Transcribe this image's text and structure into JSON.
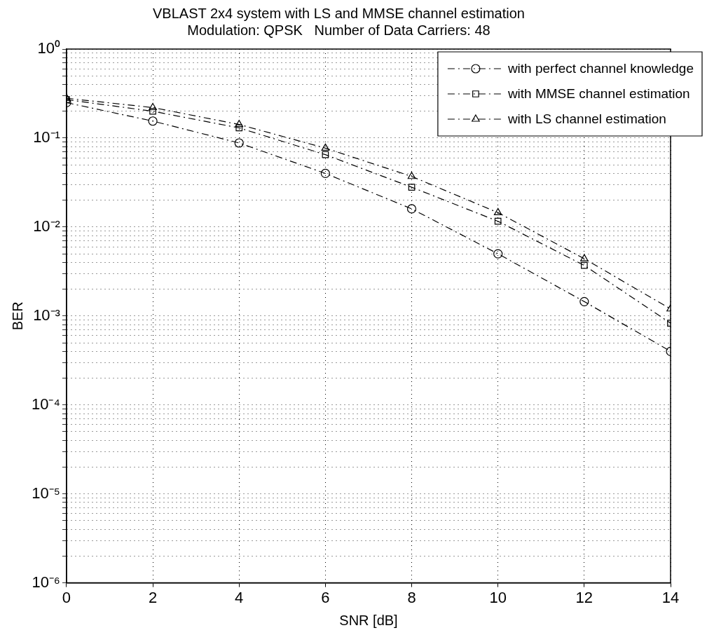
{
  "chart_data": {
    "type": "line",
    "title": "VBLAST 2x4 system with LS and MMSE channel estimation",
    "subtitle": "Modulation: QPSK   Number of Data Carriers: 48",
    "xlabel": "SNR [dB]",
    "ylabel": "BER",
    "x": [
      0,
      2,
      4,
      6,
      8,
      10,
      12,
      14
    ],
    "series": [
      {
        "name": "with perfect channel knowledge",
        "color": "#000000",
        "marker": "circle",
        "values": [
          0.25,
          0.155,
          0.088,
          0.04,
          0.016,
          0.005,
          0.00145,
          0.0004
        ]
      },
      {
        "name": "with MMSE channel estimation",
        "color": "#000000",
        "marker": "square",
        "values": [
          0.27,
          0.2,
          0.13,
          0.065,
          0.028,
          0.0116,
          0.0037,
          0.00083
        ]
      },
      {
        "name": "with LS channel estimation",
        "color": "#000000",
        "marker": "triangle",
        "values": [
          0.28,
          0.22,
          0.142,
          0.077,
          0.037,
          0.0145,
          0.0044,
          0.0012
        ]
      }
    ],
    "line_style": "dashed",
    "log": "y",
    "grid": true,
    "legend": "top right",
    "xlim": [
      0,
      14
    ],
    "xticks": [
      0,
      2,
      4,
      6,
      8,
      10,
      12,
      14
    ],
    "ylim": [
      1e-06,
      1
    ],
    "yticks": [
      {
        "value": 1e-06,
        "label": "10⁻⁶"
      },
      {
        "value": 2e-06,
        "label": null
      },
      {
        "value": 3e-06,
        "label": null
      },
      {
        "value": 4e-06,
        "label": null
      },
      {
        "value": 5e-06,
        "label": null
      },
      {
        "value": 6e-06,
        "label": null
      },
      {
        "value": 7e-06,
        "label": null
      },
      {
        "value": 8e-06,
        "label": null
      },
      {
        "value": 9e-06,
        "label": null
      },
      {
        "value": 1e-05,
        "label": "10⁻⁵"
      },
      {
        "value": 2e-05,
        "label": null
      },
      {
        "value": 3e-05,
        "label": null
      },
      {
        "value": 4e-05,
        "label": null
      },
      {
        "value": 5e-05,
        "label": null
      },
      {
        "value": 6e-05,
        "label": null
      },
      {
        "value": 7e-05,
        "label": null
      },
      {
        "value": 8e-05,
        "label": null
      },
      {
        "value": 9e-05,
        "label": null
      },
      {
        "value": 0.0001,
        "label": "10⁻⁴"
      },
      {
        "value": 0.0002,
        "label": null
      },
      {
        "value": 0.0003,
        "label": null
      },
      {
        "value": 0.0004,
        "label": null
      },
      {
        "value": 0.0005,
        "label": null
      },
      {
        "value": 0.0006,
        "label": null
      },
      {
        "value": 0.0007,
        "label": null
      },
      {
        "value": 0.0008,
        "label": null
      },
      {
        "value": 0.0009,
        "label": null
      },
      {
        "value": 0.001,
        "label": "10⁻³"
      },
      {
        "value": 0.002,
        "label": null
      },
      {
        "value": 0.003,
        "label": null
      },
      {
        "value": 0.004,
        "label": null
      },
      {
        "value": 0.005,
        "label": null
      },
      {
        "value": 0.006,
        "label": null
      },
      {
        "value": 0.007,
        "label": null
      },
      {
        "value": 0.008,
        "label": null
      },
      {
        "value": 0.009,
        "label": null
      },
      {
        "value": 0.01,
        "label": "10⁻²"
      },
      {
        "value": 0.02,
        "label": null
      },
      {
        "value": 0.03,
        "label": null
      },
      {
        "value": 0.04,
        "label": null
      },
      {
        "value": 0.05,
        "label": null
      },
      {
        "value": 0.06,
        "label": null
      },
      {
        "value": 0.07,
        "label": null
      },
      {
        "value": 0.08,
        "label": null
      },
      {
        "value": 0.09,
        "label": null
      },
      {
        "value": 0.1,
        "label": "10⁻¹"
      },
      {
        "value": 0.2,
        "label": null
      },
      {
        "value": 0.3,
        "label": null
      },
      {
        "value": 0.4,
        "label": null
      },
      {
        "value": 0.5,
        "label": null
      },
      {
        "value": 0.6,
        "label": null
      },
      {
        "value": 0.7,
        "label": null
      },
      {
        "value": 0.8,
        "label": null
      },
      {
        "value": 0.9,
        "label": null
      },
      {
        "value": 1,
        "label": "10⁰"
      }
    ]
  }
}
